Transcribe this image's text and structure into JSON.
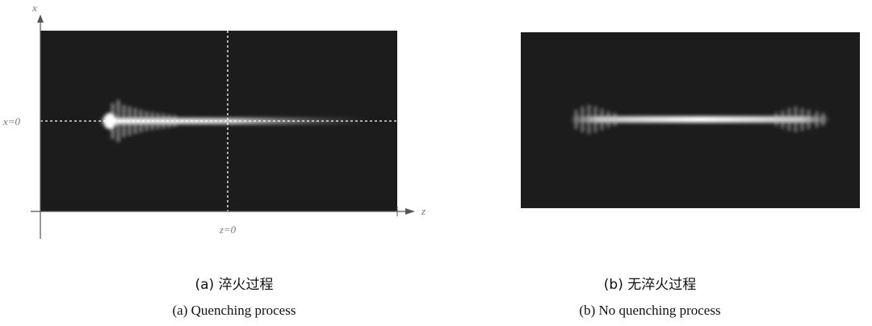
{
  "figure_a": {
    "axis_x_label": "x",
    "axis_z_label": "z",
    "x_zero_label": "x=0",
    "z_zero_label": "z=0",
    "caption_cn": "(a) 淬火过程",
    "caption_en": "(a) Quenching process"
  },
  "figure_b": {
    "caption_cn": "(b) 无淬火过程",
    "caption_en": "(b) No quenching process"
  }
}
